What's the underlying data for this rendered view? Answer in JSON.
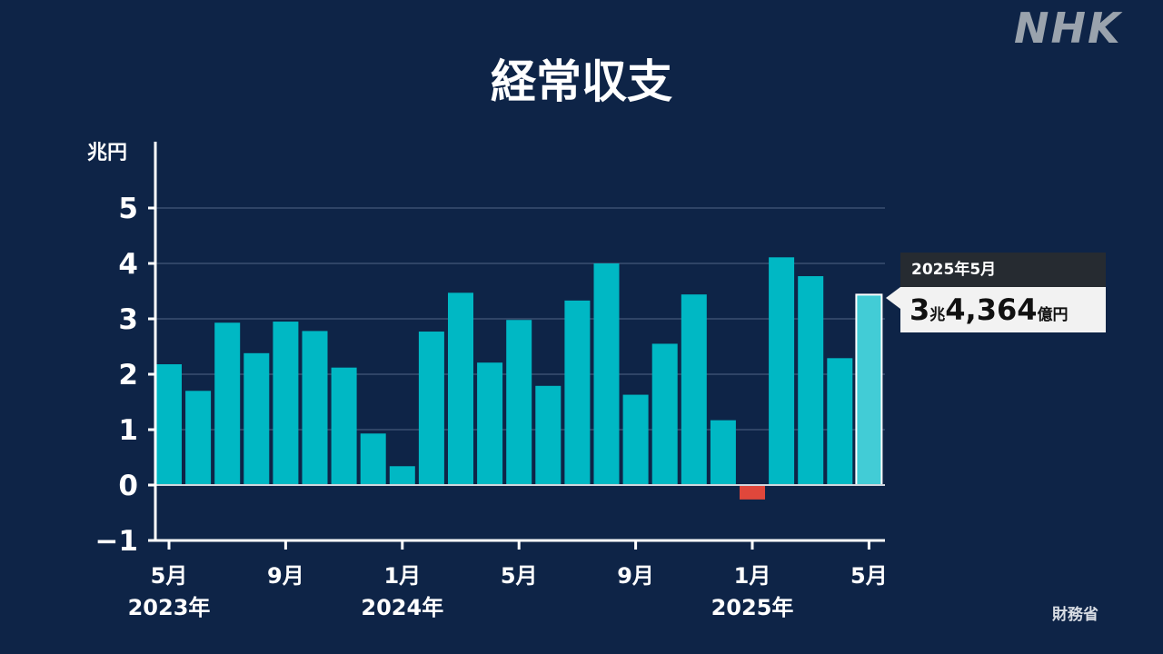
{
  "logo": "NHK",
  "title": "経常収支",
  "unit": "兆円",
  "source": "財務省",
  "callout": {
    "date": "2025年5月",
    "value_trillion": "3",
    "value_trillion_unit": "兆",
    "value_oku": "4,364",
    "value_oku_unit": "億円"
  },
  "colors": {
    "background": "#0e2447",
    "bar": "#00b8c4",
    "highlight_bar": "#42ccd6",
    "negative_bar": "#e0473b",
    "grid": "#2f4466",
    "axis": "#ffffff"
  },
  "chart_data": {
    "type": "bar",
    "title": "経常収支",
    "ylabel": "兆円",
    "ylim": [
      -1,
      5
    ],
    "yticks": [
      -1,
      0,
      1,
      2,
      3,
      4,
      5
    ],
    "grid": true,
    "categories": [
      "2023年5月",
      "2023年6月",
      "2023年7月",
      "2023年8月",
      "2023年9月",
      "2023年10月",
      "2023年11月",
      "2023年12月",
      "2024年1月",
      "2024年2月",
      "2024年3月",
      "2024年4月",
      "2024年5月",
      "2024年6月",
      "2024年7月",
      "2024年8月",
      "2024年9月",
      "2024年10月",
      "2024年11月",
      "2024年12月",
      "2025年1月",
      "2025年2月",
      "2025年3月",
      "2025年4月",
      "2025年5月"
    ],
    "values": [
      2.18,
      1.7,
      2.93,
      2.38,
      2.95,
      2.78,
      2.12,
      0.93,
      0.34,
      2.77,
      3.47,
      2.21,
      2.98,
      1.79,
      3.33,
      4.0,
      1.63,
      2.55,
      3.44,
      1.17,
      -0.26,
      4.11,
      3.77,
      2.29,
      3.4364
    ],
    "highlight_index": 24,
    "x_tick_labels": [
      {
        "index": 0,
        "month": "5月",
        "year": "2023年"
      },
      {
        "index": 4,
        "month": "9月",
        "year": ""
      },
      {
        "index": 8,
        "month": "1月",
        "year": "2024年"
      },
      {
        "index": 12,
        "month": "5月",
        "year": ""
      },
      {
        "index": 16,
        "month": "9月",
        "year": ""
      },
      {
        "index": 20,
        "month": "1月",
        "year": "2025年"
      },
      {
        "index": 24,
        "month": "5月",
        "year": ""
      }
    ]
  }
}
